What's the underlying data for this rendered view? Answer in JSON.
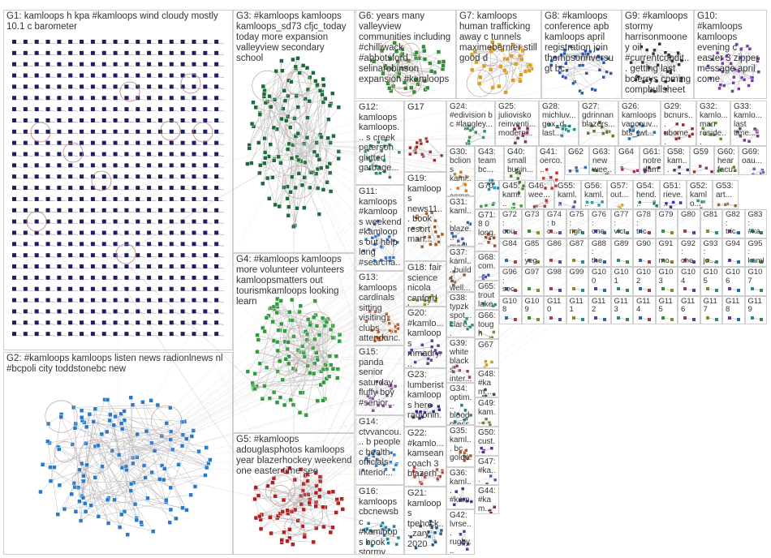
{
  "groups": [
    {
      "id": "G1",
      "label": "G1: kamloops h kpa #kamloops wind cloudy mostly 10.1 c barometer",
      "color": "#1f1f5e"
    },
    {
      "id": "G2",
      "label": "G2: #kamloops kamloops listen news radionlnews nl #bcpoli city toddstonebc new",
      "color": "#2a7ac8"
    },
    {
      "id": "G3",
      "label": "G3: #kamloops kamloops kamloops_sd73 cfjc_today today more expansion valleyview secondary school",
      "color": "#1e6b3a"
    },
    {
      "id": "G4",
      "label": "G4: #kamloops kamloops more volunteer volunteers kamloopsmatters out tourismkamloops looking learn",
      "color": "#2e9a3a"
    },
    {
      "id": "G5",
      "label": "G5: #kamloops adouglasphotos kamloops year blazerhockey weekend one easter time see",
      "color": "#b02020"
    },
    {
      "id": "G6",
      "label": "G6: years many valleyview communities including #chilliwack #abbotsford selinarobinson expansion #kamloops",
      "color": "#3a8a3a"
    },
    {
      "id": "G7",
      "label": "G7: kamloops human trafficking away c tunnels maximebernier still good d",
      "color": "#d8a020"
    },
    {
      "id": "G8",
      "label": "G8: #kamloops conference apb kamloops april registration join thompsonriversu gt bc",
      "color": "#2a55a8"
    },
    {
      "id": "G9",
      "label": "G9: #kamloops stormy harrisonmooney oil #currentcondit... getting last bcferrys coming compbullsheet",
      "color": "#333333"
    },
    {
      "id": "G10",
      "label": "G10: #kamloops kamloops evening c easter 3 zipper message april come",
      "color": "#7a3aa0"
    },
    {
      "id": "G11",
      "label": "G11: kamloops #kamloops weekend #kamloops out help long #searcha...",
      "color": "#3a70c0"
    },
    {
      "id": "G12",
      "label": "G12: kamloops kamloops... s creek peterson glutted garbage...",
      "color": "#2a8a5a"
    },
    {
      "id": "G13",
      "label": "G13: kamloops cardinals sitting visiting clubs attendanc...",
      "color": "#c05a20"
    },
    {
      "id": "G14",
      "label": "G14: ctvvancou... b people c health officials interior...",
      "color": "#3a80c0"
    },
    {
      "id": "G15",
      "label": "G15: panda senior saturday fluffy boy #senior...",
      "color": "#8a4aa0"
    },
    {
      "id": "G16",
      "label": "G16: kamloops cbcnewsbc #kamloops book stormy...",
      "color": "#20809a"
    },
    {
      "id": "G17",
      "label": "G17",
      "color": "#a02a2a"
    },
    {
      "id": "G18",
      "label": "G18: fair science nicola canford learning congrat...",
      "color": "#8a8a20"
    },
    {
      "id": "G19",
      "label": "G19: kamloops news11... book resort man...",
      "color": "#a05a20"
    },
    {
      "id": "G20",
      "label": "G20: #kamlo... kamloops mmadry... detroitre...",
      "color": "#5a3aa0"
    },
    {
      "id": "G21",
      "label": "G21: kamloops tpehock... zary 2020",
      "color": "#205a8a"
    },
    {
      "id": "G22",
      "label": "G22: #kamlo... kamsean coach 3 blazerh...",
      "color": "#c04a4a"
    },
    {
      "id": "G23",
      "label": "G23: lumberist kamloops here radionln...",
      "color": "#2a2a8a"
    },
    {
      "id": "G24",
      "label": "G24: #edivision b c #langley...",
      "color": "#3a8a5a"
    },
    {
      "id": "G25",
      "label": "G25: juliovisko reinventi... modern...",
      "color": "#8a2a5a"
    },
    {
      "id": "G26",
      "label": "G26: kamloops vancouv... bts_twt...",
      "color": "#2a6a9a"
    },
    {
      "id": "G27",
      "label": "G27: gdrinnan blazers...",
      "color": "#6a6a2a"
    },
    {
      "id": "G28",
      "label": "G28: michluv... gex_d... last...",
      "color": "#2a8a8a"
    },
    {
      "id": "G29",
      "label": "G29: bcnurs... ubcme... _awtrs...",
      "color": "#9a2a2a"
    },
    {
      "id": "G30",
      "label": "G30: bclions kaml... camp...",
      "color": "#d07a20"
    },
    {
      "id": "G31",
      "label": "G31: kaml... blaze... mapl...",
      "color": "#3a5aa0"
    },
    {
      "id": "G32",
      "label": "G32: kamlo... man reside...",
      "color": "#5a9a3a"
    },
    {
      "id": "G33",
      "label": "G33: kamlo... last time...",
      "color": "#7a3a8a"
    },
    {
      "id": "G34",
      "label": "G34: optim... blood press...",
      "color": "#2a7a7a"
    },
    {
      "id": "G35",
      "label": "G35: kaml... bc golde...",
      "color": "#aa5a2a"
    },
    {
      "id": "G36",
      "label": "G36: kaml... #kam... week...",
      "color": "#3a3a9a"
    },
    {
      "id": "G37",
      "label": "G37: kaml... build 1 well...",
      "color": "#8a5a3a"
    },
    {
      "id": "G38",
      "label": "G38: typzk spot... clare...",
      "color": "#2a9a6a"
    },
    {
      "id": "G39",
      "label": "G39: white blacks inter...",
      "color": "#9a3a6a"
    },
    {
      "id": "G40",
      "label": "G40: small busin...",
      "color": "#4a7a2a"
    },
    {
      "id": "G41",
      "label": "G41: oerco...",
      "color": "#c03030"
    },
    {
      "id": "G42",
      "label": "G42: lvrse... rugby...",
      "color": "#4a4aa0"
    },
    {
      "id": "G43",
      "label": "G43: team bc...",
      "color": "#2a8aaa"
    },
    {
      "id": "G44",
      "label": "G44: #kam... wee...",
      "color": "#6a3a3a"
    },
    {
      "id": "G45",
      "label": "G45: kaml...",
      "color": "#3a9a3a"
    },
    {
      "id": "G46",
      "label": "G46: wee...",
      "color": "#aa3a3a"
    },
    {
      "id": "G47",
      "label": "G47: #ka... #kam...",
      "color": "#3a6aaa"
    },
    {
      "id": "G48",
      "label": "G48: #kam... #kam...",
      "color": "#2a5a5a"
    },
    {
      "id": "G49",
      "label": "G49: kam... weh...",
      "color": "#7a7a3a"
    },
    {
      "id": "G50",
      "label": "G50: cust... #ka...",
      "color": "#5a2a8a"
    },
    {
      "id": "G51",
      "label": "G51: rieve...",
      "color": "#2a2aaa"
    },
    {
      "id": "G52",
      "label": "G52: kamlo...",
      "color": "#3a8a6a"
    },
    {
      "id": "G53",
      "label": "G53: art...",
      "color": "#9a6a2a"
    },
    {
      "id": "G54",
      "label": "G54: hend...",
      "color": "#2a7a4a"
    },
    {
      "id": "G55",
      "label": "G55: kaml...",
      "color": "#5a5aaa"
    },
    {
      "id": "G56",
      "label": "G56: kaml...",
      "color": "#2a9a9a"
    },
    {
      "id": "G57",
      "label": "G57: out...",
      "color": "#d0a030"
    },
    {
      "id": "G58",
      "label": "G58: kam... more",
      "color": "#3a3a6a"
    },
    {
      "id": "G59",
      "label": "G59",
      "color": "#8a3a3a"
    },
    {
      "id": "G60",
      "label": "G60: hear facu...",
      "color": "#4a8a2a"
    },
    {
      "id": "G61",
      "label": "G61: notre dam...",
      "color": "#6a2a6a"
    },
    {
      "id": "G62",
      "label": "G62",
      "color": "#2a6aaa"
    },
    {
      "id": "G63",
      "label": "G63: new wee...",
      "color": "#3a7a3a"
    },
    {
      "id": "G64",
      "label": "G64",
      "color": "#aa2a5a"
    },
    {
      "id": "G65",
      "label": "G65: trout lake...",
      "color": "#2a8a7a"
    },
    {
      "id": "G66",
      "label": "G66: tough go...",
      "color": "#8a8a3a"
    },
    {
      "id": "G67",
      "label": "G67",
      "color": "#c0a020"
    },
    {
      "id": "G68",
      "label": "G68: com... guid...",
      "color": "#3a4aaa"
    },
    {
      "id": "G69",
      "label": "G69: oau...",
      "color": "#6a6aaa"
    },
    {
      "id": "G70",
      "label": "G70",
      "color": "#3a9a4a"
    },
    {
      "id": "G71",
      "label": "G71: 8 0 long...",
      "color": "#9a4a2a"
    }
  ],
  "small_groups": [
    "G72: cou...",
    "G73",
    "G74: b c...",
    "G75: righ...",
    "G76: one...",
    "G77: vict...",
    "G78: tric...",
    "G79",
    "G80",
    "G81",
    "G82: tric...",
    "G83: #ka...",
    "G84",
    "G85: yeg...",
    "G86",
    "G87",
    "G88: the...",
    "G89",
    "G90",
    "G91: mo...",
    "G92: che...",
    "G93: jo...",
    "G94",
    "G95: kaml...",
    "G96: sec...",
    "G97",
    "G98",
    "G99",
    "G100",
    "G101",
    "G102",
    "G103",
    "G104",
    "G105",
    "G106",
    "G107",
    "G108",
    "G109",
    "G110",
    "G111",
    "G112",
    "G113",
    "G114",
    "G115",
    "G116",
    "G117",
    "G118",
    "G119"
  ]
}
